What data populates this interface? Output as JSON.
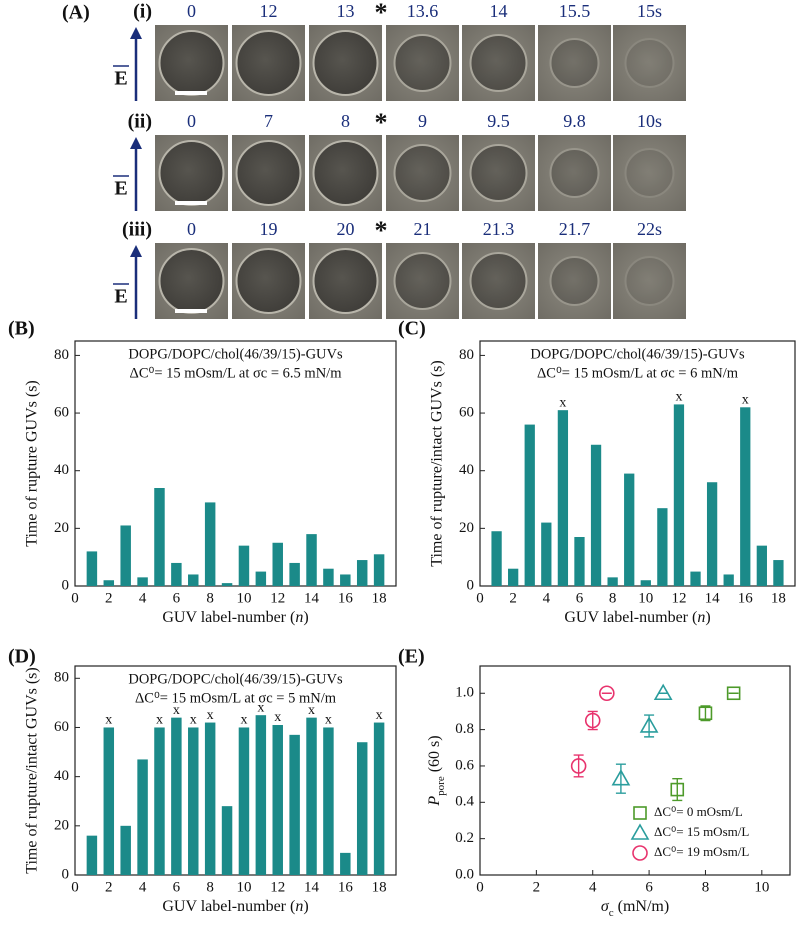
{
  "panel_a": {
    "label": "(A)",
    "field_label": "E",
    "rupture_marker": "*",
    "rows": [
      {
        "label": "(i)",
        "times": [
          "0",
          "12",
          "13",
          "13.6",
          "14",
          "15.5",
          "15s"
        ]
      },
      {
        "label": "(ii)",
        "times": [
          "0",
          "7",
          "8",
          "9",
          "9.5",
          "9.8",
          "10s"
        ]
      },
      {
        "label": "(iii)",
        "times": [
          "0",
          "19",
          "20",
          "21",
          "21.3",
          "21.7",
          "22s"
        ]
      }
    ]
  },
  "chart_data": [
    {
      "type": "bar",
      "label": "(B)",
      "annotations": [
        "DOPG/DOPC/chol(46/39/15)-GUVs",
        "ΔC⁰= 15 mOsm/L at σc = 6.5 mN/m"
      ],
      "xlabel": [
        "GUV label-number (",
        "n",
        ")"
      ],
      "ylabel": "Time of rupture GUVs (s)",
      "color": "#1b8a89",
      "x": [
        1,
        2,
        3,
        4,
        5,
        6,
        7,
        8,
        9,
        10,
        11,
        12,
        13,
        14,
        15,
        16,
        17,
        18
      ],
      "values": [
        12,
        2,
        21,
        3,
        34,
        8,
        4,
        29,
        1,
        14,
        5,
        15,
        8,
        18,
        6,
        4,
        9,
        11
      ],
      "xlim": [
        0,
        19
      ],
      "xticks": [
        0,
        2,
        4,
        6,
        8,
        10,
        12,
        14,
        16,
        18
      ],
      "ylim": [
        0,
        85
      ],
      "yticks": [
        0,
        20,
        40,
        60,
        80
      ]
    },
    {
      "type": "bar",
      "label": "(C)",
      "annotations": [
        "DOPG/DOPC/chol(46/39/15)-GUVs",
        "ΔC⁰= 15 mOsm/L at σc = 6 mN/m"
      ],
      "xlabel": [
        "GUV label-number (",
        "n",
        ")"
      ],
      "ylabel": "Time of rupture/intact GUVs (s)",
      "color": "#1b8a89",
      "x": [
        1,
        2,
        3,
        4,
        5,
        6,
        7,
        8,
        9,
        10,
        11,
        12,
        13,
        14,
        15,
        16,
        17,
        18
      ],
      "values": [
        19,
        6,
        56,
        22,
        61,
        17,
        49,
        3,
        39,
        2,
        27,
        63,
        5,
        36,
        4,
        62,
        14,
        9
      ],
      "intact": [
        5,
        12,
        16
      ],
      "intact_label": "x",
      "xlim": [
        0,
        19
      ],
      "xticks": [
        0,
        2,
        4,
        6,
        8,
        10,
        12,
        14,
        16,
        18
      ],
      "ylim": [
        0,
        85
      ],
      "yticks": [
        0,
        20,
        40,
        60,
        80
      ]
    },
    {
      "type": "bar",
      "label": "(D)",
      "annotations": [
        "DOPG/DOPC/chol(46/39/15)-GUVs",
        "ΔC⁰= 15 mOsm/L at σc = 5 mN/m"
      ],
      "xlabel": [
        "GUV label-number (",
        "n",
        ")"
      ],
      "ylabel": "Time of rupture/intact GUVs (s)",
      "color": "#1b8a89",
      "x": [
        1,
        2,
        3,
        4,
        5,
        6,
        7,
        8,
        9,
        10,
        11,
        12,
        13,
        14,
        15,
        16,
        17,
        18
      ],
      "values": [
        16,
        60,
        20,
        47,
        60,
        64,
        60,
        62,
        28,
        60,
        65,
        61,
        57,
        64,
        60,
        9,
        54,
        62
      ],
      "intact": [
        2,
        5,
        6,
        7,
        8,
        10,
        11,
        12,
        14,
        15,
        18
      ],
      "intact_label": "x",
      "xlim": [
        0,
        19
      ],
      "xticks": [
        0,
        2,
        4,
        6,
        8,
        10,
        12,
        14,
        16,
        18
      ],
      "ylim": [
        0,
        85
      ],
      "yticks": [
        0,
        20,
        40,
        60,
        80
      ]
    },
    {
      "type": "scatter",
      "label": "(E)",
      "xlabel": [
        "σ",
        "c",
        " (mN/m)"
      ],
      "ylabel": [
        "P",
        "pore",
        " (60 s)"
      ],
      "legend": "lower right",
      "xlim": [
        0,
        11
      ],
      "xticks": [
        0,
        2,
        4,
        6,
        8,
        10
      ],
      "ylim": [
        0,
        1.15
      ],
      "yticks": [
        {
          "value": 0,
          "label": "0.0"
        },
        {
          "value": 0.2,
          "label": "0.2"
        },
        {
          "value": 0.4,
          "label": "0.4"
        },
        {
          "value": 0.6,
          "label": "0.6"
        },
        {
          "value": 0.8,
          "label": "0.8"
        },
        {
          "value": 1,
          "label": "1.0"
        }
      ],
      "series": [
        {
          "name": "ΔC⁰= 0 mOsm/L",
          "color": "#4d9a2a",
          "marker": "square",
          "x": [
            7,
            8,
            9
          ],
          "values": [
            0.47,
            0.89,
            1.0
          ],
          "errors": [
            0.06,
            0.04,
            0
          ]
        },
        {
          "name": "ΔC⁰= 15 mOsm/L",
          "color": "#2a9d9d",
          "marker": "triangle",
          "x": [
            5,
            6,
            6.5
          ],
          "values": [
            0.53,
            0.82,
            1.0
          ],
          "errors": [
            0.08,
            0.06,
            0
          ]
        },
        {
          "name": "ΔC⁰= 19 mOsm/L",
          "color": "#e8336d",
          "marker": "circle",
          "x": [
            3.5,
            4,
            4.5
          ],
          "values": [
            0.6,
            0.85,
            1.0
          ],
          "errors": [
            0.06,
            0.05,
            0
          ]
        }
      ]
    }
  ]
}
